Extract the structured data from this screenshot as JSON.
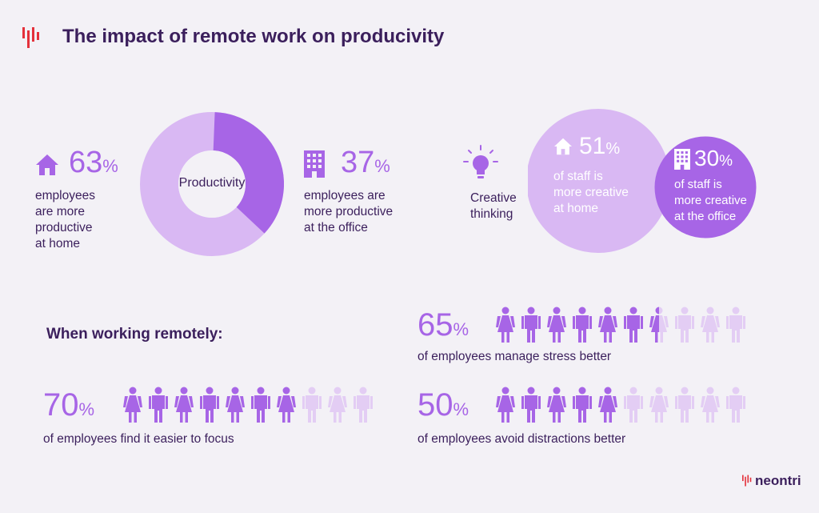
{
  "header": {
    "title": "The impact of remote work on producivity"
  },
  "productivity": {
    "home": {
      "value": "63",
      "unit": "%",
      "label_lines": [
        "employees",
        "are more",
        "productive",
        "at home"
      ]
    },
    "office": {
      "value": "37",
      "unit": "%",
      "label_lines": [
        "employees are",
        "more productive",
        "at the office"
      ]
    },
    "center_label": "Productivity"
  },
  "creative": {
    "label_lines": [
      "Creative",
      "thinking"
    ],
    "home": {
      "value": "51",
      "unit": "%",
      "label_lines": [
        "of staff is",
        "more creative",
        "at home"
      ]
    },
    "office": {
      "value": "30",
      "unit": "%",
      "label_lines": [
        "of staff is",
        "more creative",
        "at the office"
      ]
    }
  },
  "remote": {
    "heading": "When working remotely:",
    "stats": [
      {
        "value": "70",
        "unit": "%",
        "label": "of employees find it easier to focus"
      },
      {
        "value": "65",
        "unit": "%",
        "label": "of employees manage stress better"
      },
      {
        "value": "50",
        "unit": "%",
        "label": "of employees avoid distractions better"
      }
    ]
  },
  "logo": {
    "text": "neontri"
  },
  "colors": {
    "accent": "#a765e6",
    "light": "#d9b8f3",
    "faded": "#e3cdf4",
    "dark": "#3b1f5c",
    "red": "#e4313b",
    "bg": "#f3f1f6"
  },
  "chart_data": [
    {
      "type": "pie",
      "title": "Productivity",
      "categories": [
        "at home",
        "at the office"
      ],
      "values": [
        63,
        37
      ]
    },
    {
      "type": "bar",
      "title": "Creative thinking",
      "categories": [
        "at home",
        "at the office"
      ],
      "values": [
        51,
        30
      ]
    },
    {
      "type": "bar",
      "title": "When working remotely:",
      "categories": [
        "find it easier to focus",
        "manage stress better",
        "avoid distractions better"
      ],
      "values": [
        70,
        65,
        50
      ]
    }
  ]
}
